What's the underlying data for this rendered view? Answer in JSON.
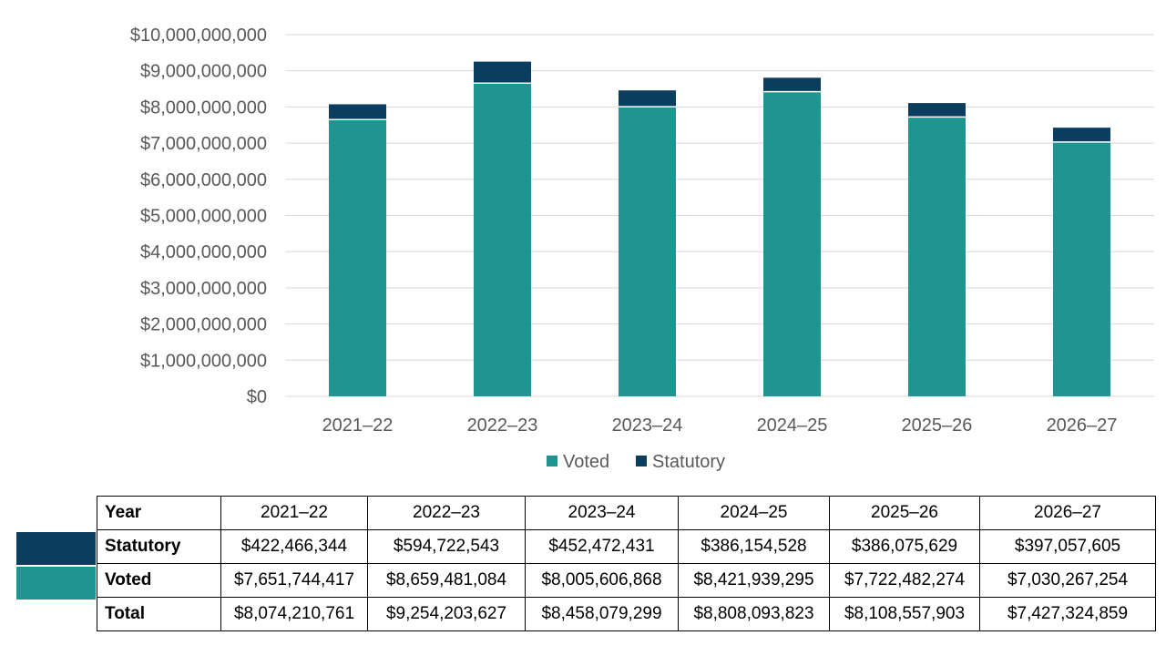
{
  "colors": {
    "voted": "#1f9490",
    "statutory": "#0b3d5e",
    "grid": "#d9d9d9",
    "tick": "#595959"
  },
  "chart_data": {
    "type": "bar",
    "stacked": true,
    "categories": [
      "2021–22",
      "2022–23",
      "2023–24",
      "2024–25",
      "2025–26",
      "2026–27"
    ],
    "series": [
      {
        "name": "Voted",
        "values": [
          7651744417,
          8659481084,
          8005606868,
          8421939295,
          7722482274,
          7030267254
        ]
      },
      {
        "name": "Statutory",
        "values": [
          422466344,
          594722543,
          452472431,
          386154528,
          386075629,
          397057605
        ]
      }
    ],
    "ylim": [
      0,
      10000000000
    ],
    "yticks": [
      "$0",
      "$1,000,000,000",
      "$2,000,000,000",
      "$3,000,000,000",
      "$4,000,000,000",
      "$5,000,000,000",
      "$6,000,000,000",
      "$7,000,000,000",
      "$8,000,000,000",
      "$9,000,000,000",
      "$10,000,000,000"
    ],
    "grid": true,
    "legend": "bottom",
    "title": "",
    "xlabel": "",
    "ylabel": ""
  },
  "table": {
    "header": [
      "Year",
      "2021–22",
      "2022–23",
      "2023–24",
      "2024–25",
      "2025–26",
      "2026–27"
    ],
    "rows": [
      [
        "Statutory",
        "$422,466,344",
        "$594,722,543",
        "$452,472,431",
        "$386,154,528",
        "$386,075,629",
        "$397,057,605"
      ],
      [
        "Voted",
        "$7,651,744,417",
        "$8,659,481,084",
        "$8,005,606,868",
        "$8,421,939,295",
        "$7,722,482,274",
        "$7,030,267,254"
      ],
      [
        "Total",
        "$8,074,210,761",
        "$9,254,203,627",
        "$8,458,079,299",
        "$8,808,093,823",
        "$8,108,557,903",
        "$7,427,324,859"
      ]
    ]
  }
}
